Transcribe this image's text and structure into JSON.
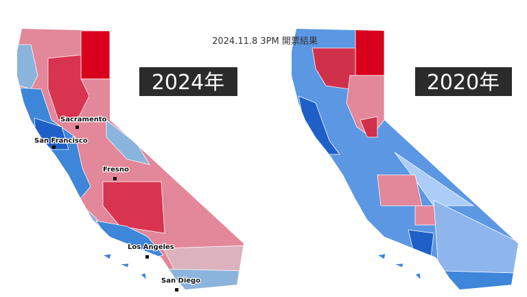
{
  "header": {
    "title": "2024.11.8 3PM 開票結果"
  },
  "maps": [
    {
      "label": "2024年",
      "cities": [
        "Sacramento",
        "San Francisco",
        "Fresno",
        "Los Angeles",
        "San Diego"
      ]
    },
    {
      "label": "2020年"
    }
  ]
}
